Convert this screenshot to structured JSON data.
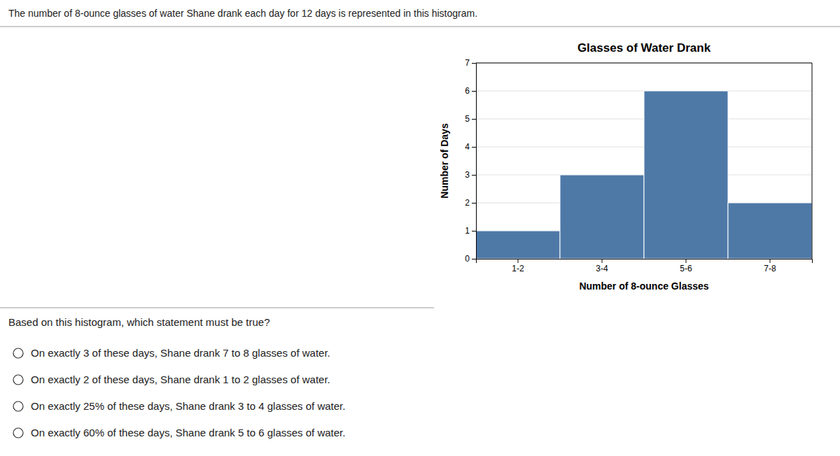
{
  "chart_data": {
    "type": "bar",
    "title": "Glasses of Water Drank",
    "xlabel": "Number of 8-ounce Glasses",
    "ylabel": "Number of Days",
    "categories": [
      "1-2",
      "3-4",
      "5-6",
      "7-8"
    ],
    "values": [
      1,
      3,
      6,
      2
    ],
    "ylim": [
      0,
      7
    ],
    "yticks": [
      0,
      1,
      2,
      3,
      4,
      5,
      6,
      7
    ],
    "grid": true,
    "annotations": [
      "The number of 8-ounce glasses of water Shane drank each day for 12 days is represented in this histogram.",
      "Based on this histogram, which statement must be true?",
      "On exactly 3 of these days, Shane drank 7 to 8 glasses of water.",
      "On exactly 2 of these days, Shane drank 1 to 2 glasses of water.",
      "On exactly 25% of these days, Shane drank 3 to 4 glasses of water.",
      "On exactly 60% of these days, Shane drank 5 to 6 glasses of water."
    ]
  }
}
